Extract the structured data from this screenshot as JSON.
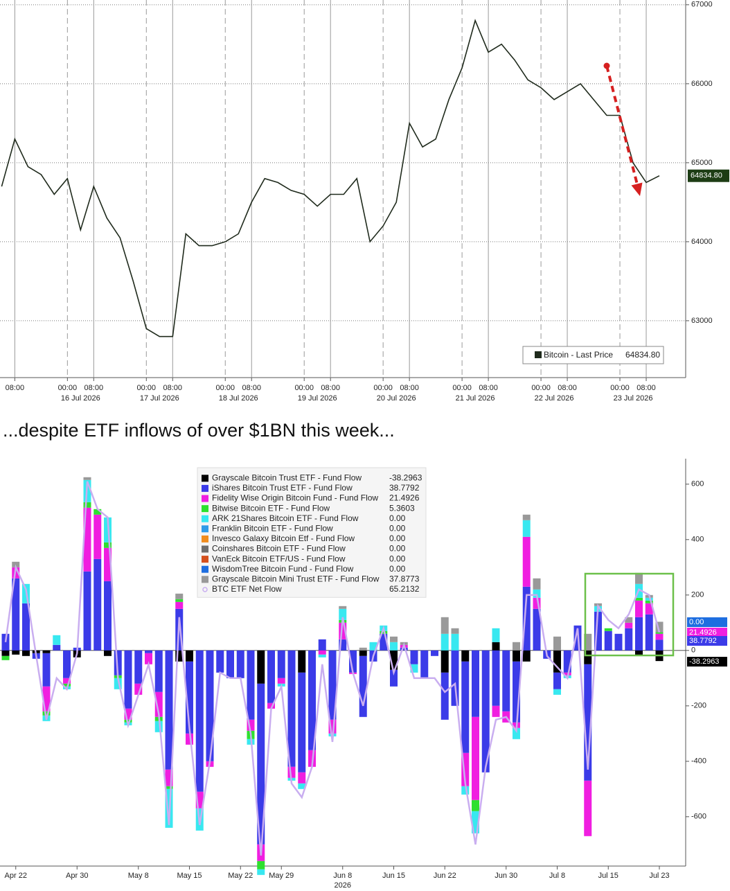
{
  "caption": "...despite ETF inflows of over $1BN this week...",
  "chart_data": [
    {
      "type": "line",
      "series": [
        {
          "name": "Bitcoin - Last Price",
          "color": "#1f2a1c",
          "last_label": "64834.80",
          "values": [
            64700,
            65300,
            64950,
            64850,
            64600,
            64800,
            64150,
            64700,
            64300,
            64050,
            63500,
            62900,
            62800,
            62800,
            64100,
            63950,
            63950,
            64000,
            64100,
            64500,
            64800,
            64750,
            64650,
            64600,
            64450,
            64600,
            64600,
            64800,
            64000,
            64200,
            64500,
            65500,
            65200,
            65300,
            65800,
            66200,
            66800,
            66400,
            66500,
            66300,
            66050,
            65950,
            65800,
            65900,
            66000,
            65800,
            65600,
            65600,
            65000,
            64750,
            64834.8
          ]
        }
      ],
      "x": [
        "2026-07-15T04:00",
        "2026-07-15T08:00",
        "2026-07-15T12:00",
        "2026-07-15T16:00",
        "2026-07-15T20:00",
        "2026-07-16T00:00",
        "2026-07-16T04:00",
        "2026-07-16T08:00",
        "2026-07-16T12:00",
        "2026-07-16T16:00",
        "2026-07-16T20:00",
        "2026-07-17T00:00",
        "2026-07-17T04:00",
        "2026-07-17T08:00",
        "2026-07-17T12:00",
        "2026-07-17T16:00",
        "2026-07-17T20:00",
        "2026-07-18T00:00",
        "2026-07-18T04:00",
        "2026-07-18T08:00",
        "2026-07-18T12:00",
        "2026-07-18T16:00",
        "2026-07-18T20:00",
        "2026-07-19T00:00",
        "2026-07-19T04:00",
        "2026-07-19T08:00",
        "2026-07-19T12:00",
        "2026-07-19T16:00",
        "2026-07-19T20:00",
        "2026-07-20T00:00",
        "2026-07-20T04:00",
        "2026-07-20T08:00",
        "2026-07-20T12:00",
        "2026-07-20T16:00",
        "2026-07-20T20:00",
        "2026-07-21T00:00",
        "2026-07-21T04:00",
        "2026-07-21T08:00",
        "2026-07-21T12:00",
        "2026-07-21T16:00",
        "2026-07-21T20:00",
        "2026-07-22T00:00",
        "2026-07-22T04:00",
        "2026-07-22T08:00",
        "2026-07-22T12:00",
        "2026-07-22T16:00",
        "2026-07-22T20:00",
        "2026-07-23T00:00",
        "2026-07-23T04:00",
        "2026-07-23T08:00",
        "2026-07-23T12:00"
      ],
      "xlim": [
        "2026-07-15T03:30",
        "2026-07-23T20:00"
      ],
      "xticks": [
        {
          "value": "2026-07-15T08:00",
          "label": "08:00"
        },
        {
          "value": "2026-07-16T00:00",
          "label": "00:00"
        },
        {
          "value": "2026-07-16T08:00",
          "label": "08:00"
        },
        {
          "value": "2026-07-17T00:00",
          "label": "00:00"
        },
        {
          "value": "2026-07-17T08:00",
          "label": "08:00"
        },
        {
          "value": "2026-07-18T00:00",
          "label": "00:00"
        },
        {
          "value": "2026-07-18T08:00",
          "label": "08:00"
        },
        {
          "value": "2026-07-19T00:00",
          "label": "00:00"
        },
        {
          "value": "2026-07-19T08:00",
          "label": "08:00"
        },
        {
          "value": "2026-07-20T00:00",
          "label": "00:00"
        },
        {
          "value": "2026-07-20T08:00",
          "label": "08:00"
        },
        {
          "value": "2026-07-21T00:00",
          "label": "00:00"
        },
        {
          "value": "2026-07-21T08:00",
          "label": "08:00"
        },
        {
          "value": "2026-07-22T00:00",
          "label": "00:00"
        },
        {
          "value": "2026-07-22T08:00",
          "label": "08:00"
        },
        {
          "value": "2026-07-23T00:00",
          "label": "00:00"
        },
        {
          "value": "2026-07-23T08:00",
          "label": "08:00"
        }
      ],
      "date_labels": [
        {
          "value": "2026-07-16T04:00",
          "label": "16 Jul 2026"
        },
        {
          "value": "2026-07-17T04:00",
          "label": "17 Jul 2026"
        },
        {
          "value": "2026-07-18T04:00",
          "label": "18 Jul 2026"
        },
        {
          "value": "2026-07-19T04:00",
          "label": "19 Jul 2026"
        },
        {
          "value": "2026-07-20T04:00",
          "label": "20 Jul 2026"
        },
        {
          "value": "2026-07-21T04:00",
          "label": "21 Jul 2026"
        },
        {
          "value": "2026-07-22T04:00",
          "label": "22 Jul 2026"
        },
        {
          "value": "2026-07-23T04:00",
          "label": "23 Jul 2026"
        }
      ],
      "ylim": [
        62280,
        67060
      ],
      "yticks": [
        63000,
        64000,
        65000,
        66000,
        67000
      ],
      "grid": true,
      "legend": "bottom-right"
    },
    {
      "type": "bar",
      "stacked": true,
      "categories": [
        null,
        "Apr 22",
        null,
        null,
        null,
        null,
        null,
        "Apr 30",
        null,
        null,
        null,
        null,
        null,
        "May 8",
        null,
        null,
        null,
        null,
        "May 15",
        null,
        null,
        null,
        null,
        "May 22",
        null,
        null,
        null,
        "May 29",
        null,
        null,
        null,
        null,
        null,
        "Jun 8",
        null,
        null,
        null,
        null,
        "Jun 15",
        null,
        null,
        null,
        null,
        "Jun 22",
        null,
        null,
        null,
        null,
        null,
        "Jun 30",
        null,
        null,
        null,
        null,
        "Jul 8",
        null,
        null,
        null,
        null,
        "Jul 15",
        null,
        null,
        null,
        null,
        "Jul 23"
      ],
      "year_label": "2026",
      "series": [
        {
          "name": "Grayscale Bitcoin Trust ETF - Fund Flow",
          "color": "#000000",
          "legend_value": "-38.2963",
          "values": [
            -20,
            -15,
            -20,
            -10,
            -10,
            0,
            0,
            -25,
            0,
            0,
            -20,
            0,
            0,
            0,
            0,
            0,
            0,
            -40,
            -40,
            0,
            0,
            0,
            0,
            0,
            0,
            -120,
            0,
            0,
            0,
            -80,
            0,
            0,
            0,
            0,
            0,
            -20,
            0,
            0,
            -70,
            0,
            0,
            0,
            0,
            -80,
            0,
            -40,
            0,
            0,
            30,
            0,
            -40,
            -40,
            0,
            0,
            -80,
            0,
            0,
            -50,
            0,
            0,
            0,
            0,
            -20,
            0,
            -38.2963
          ]
        },
        {
          "name": "iShares Bitcoin Trust ETF - Fund Flow",
          "color": "#3b3be8",
          "legend_value": "38.7792",
          "values": [
            60,
            260,
            170,
            -20,
            -120,
            20,
            -100,
            10,
            285,
            330,
            250,
            -90,
            -210,
            -120,
            -10,
            -150,
            -430,
            150,
            -260,
            -510,
            -400,
            -80,
            -100,
            -100,
            -250,
            -580,
            -190,
            -100,
            -420,
            -360,
            -360,
            40,
            -250,
            40,
            -80,
            -220,
            -40,
            60,
            -60,
            10,
            -50,
            -100,
            -20,
            -170,
            -200,
            -330,
            -240,
            -440,
            -200,
            -220,
            -220,
            230,
            150,
            -30,
            -60,
            -80,
            90,
            -420,
            140,
            70,
            60,
            80,
            120,
            130,
            38.7792
          ]
        },
        {
          "name": "Fidelity Wise Origin Bitcoin Fund - Fund Flow",
          "color": "#f01ee0",
          "legend_value": "21.4926",
          "values": [
            0,
            40,
            0,
            0,
            -90,
            0,
            -20,
            0,
            230,
            160,
            120,
            0,
            -40,
            -40,
            -40,
            -90,
            -60,
            25,
            -40,
            -60,
            -20,
            0,
            0,
            0,
            -40,
            -60,
            -20,
            -20,
            -40,
            -40,
            -60,
            -15,
            -50,
            60,
            -5,
            0,
            0,
            0,
            0,
            10,
            0,
            0,
            0,
            0,
            0,
            -120,
            -300,
            0,
            -40,
            -40,
            -20,
            180,
            40,
            0,
            0,
            -10,
            0,
            -200,
            0,
            0,
            0,
            20,
            60,
            40,
            21.4926
          ]
        },
        {
          "name": "Bitwise Bitcoin ETF - Fund Flow",
          "color": "#2ee02e",
          "legend_value": "5.3603",
          "values": [
            -15,
            0,
            0,
            0,
            -15,
            0,
            -10,
            0,
            20,
            20,
            20,
            -10,
            -10,
            0,
            0,
            -15,
            -10,
            10,
            0,
            0,
            0,
            0,
            0,
            0,
            -30,
            -30,
            0,
            0,
            0,
            0,
            0,
            0,
            0,
            10,
            0,
            0,
            0,
            10,
            0,
            0,
            0,
            0,
            0,
            0,
            0,
            0,
            -40,
            0,
            0,
            0,
            0,
            0,
            0,
            0,
            0,
            0,
            0,
            0,
            0,
            10,
            0,
            0,
            10,
            10,
            5.3603
          ]
        },
        {
          "name": "ARK 21Shares Bitcoin ETF - Fund Flow",
          "color": "#38e8f0",
          "legend_value": "0.00",
          "values": [
            0,
            0,
            70,
            0,
            -20,
            35,
            -10,
            0,
            80,
            0,
            90,
            -40,
            -10,
            0,
            0,
            -40,
            -140,
            0,
            0,
            -80,
            0,
            0,
            0,
            0,
            -20,
            -20,
            0,
            -10,
            -10,
            -20,
            0,
            -10,
            -10,
            40,
            0,
            0,
            30,
            20,
            30,
            0,
            -30,
            0,
            0,
            60,
            60,
            -30,
            -80,
            0,
            50,
            0,
            -40,
            60,
            30,
            0,
            -20,
            -10,
            0,
            0,
            20,
            0,
            0,
            0,
            50,
            10,
            0
          ]
        },
        {
          "name": "Franklin Bitcoin ETF - Fund Flow",
          "color": "#2f9be8",
          "legend_value": "0.00"
        },
        {
          "name": "Invesco Galaxy Bitcoin Etf - Fund Flow",
          "color": "#f08c1e",
          "legend_value": "0.00"
        },
        {
          "name": "Coinshares Bitcoin ETF - Fund Flow",
          "color": "#6e6e6e",
          "legend_value": "0.00"
        },
        {
          "name": "VanEck Bitcoin ETF/US - Fund Flow",
          "color": "#d4501e",
          "legend_value": "0.00"
        },
        {
          "name": "WisdomTree Bitcoin Fund - Fund Flow",
          "color": "#1e6ee0",
          "legend_value": "0.00"
        },
        {
          "name": "Grayscale Bitcoin Mini Trust ETF - Fund Flow",
          "color": "#999999",
          "legend_value": "37.8773",
          "values": [
            0,
            20,
            0,
            0,
            0,
            0,
            0,
            0,
            10,
            0,
            0,
            0,
            0,
            0,
            0,
            0,
            0,
            20,
            0,
            0,
            0,
            0,
            0,
            0,
            0,
            0,
            0,
            0,
            0,
            0,
            0,
            0,
            0,
            10,
            0,
            10,
            0,
            0,
            20,
            10,
            0,
            0,
            0,
            60,
            20,
            0,
            0,
            0,
            0,
            0,
            30,
            20,
            40,
            0,
            50,
            0,
            0,
            60,
            10,
            0,
            0,
            20,
            40,
            10,
            37.8773
          ]
        },
        {
          "name": "BTC ETF Net Flow",
          "type": "line",
          "color": "#c9aef0",
          "legend_value": "65.2132",
          "values": [
            30,
            300,
            220,
            -20,
            -250,
            -100,
            -140,
            -10,
            610,
            510,
            480,
            -100,
            -270,
            -160,
            -50,
            -230,
            -630,
            120,
            -280,
            -630,
            -400,
            -80,
            -100,
            -100,
            -300,
            -740,
            -210,
            -130,
            -480,
            -530,
            -420,
            -50,
            -330,
            120,
            -80,
            -200,
            -20,
            80,
            -80,
            20,
            -100,
            -100,
            -100,
            -150,
            -120,
            -480,
            -700,
            -420,
            -250,
            -240,
            -290,
            200,
            200,
            -20,
            -60,
            -100,
            80,
            -430,
            160,
            110,
            80,
            130,
            220,
            200,
            65.2132
          ]
        }
      ],
      "ylim": [
        -778,
        692
      ],
      "yticks": [
        -600,
        -400,
        -200,
        0,
        200,
        400,
        600
      ],
      "grid": false,
      "legend": "top-center"
    }
  ]
}
